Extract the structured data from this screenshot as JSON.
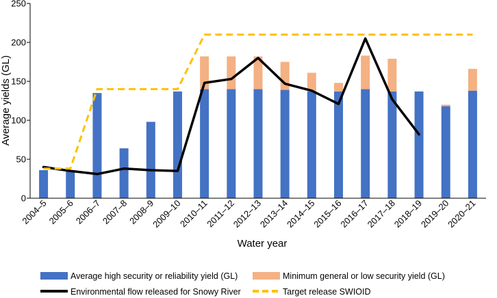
{
  "chart_data": {
    "type": "bar",
    "title": "",
    "xlabel": "Water year",
    "ylabel": "Average yields (GL)",
    "ylim": [
      0,
      250
    ],
    "yticks": [
      0,
      50,
      100,
      150,
      200,
      250
    ],
    "grid": false,
    "legend_position": "bottom",
    "categories": [
      "2004–5",
      "2005–6",
      "2006–7",
      "2007–8",
      "2008–9",
      "2009–10",
      "2010–11",
      "2011–12",
      "2012–13",
      "2013–14",
      "2014–15",
      "2015–16",
      "2016–17",
      "2017–18",
      "2018–19",
      "2019–20",
      "2020–21"
    ],
    "series": [
      {
        "name": "Average high security or reliability yield (GL)",
        "kind": "stacked-bar",
        "color": "#4472c4",
        "values": [
          36,
          36,
          135,
          64,
          98,
          137,
          140,
          140,
          140,
          139,
          137,
          137,
          140,
          137,
          137,
          118,
          138
        ]
      },
      {
        "name": "Minimum general or low security yield (GL)",
        "kind": "stacked-bar",
        "color": "#f4b183",
        "values": [
          0,
          0,
          0,
          0,
          0,
          0,
          42,
          42,
          42,
          36,
          24,
          11,
          43,
          42,
          0,
          2,
          28
        ]
      },
      {
        "name": "Environmental flow released for Snowy River",
        "kind": "line",
        "color": "#000000",
        "values": [
          40,
          35,
          31,
          38,
          36,
          35,
          148,
          153,
          180,
          147,
          138,
          121,
          205,
          127,
          82,
          null,
          null
        ]
      },
      {
        "name": "Target release SWIOID",
        "kind": "dashed-line",
        "color": "#ffc000",
        "values": [
          38,
          38,
          140,
          140,
          140,
          140,
          210,
          210,
          210,
          210,
          210,
          210,
          210,
          210,
          210,
          210,
          210
        ]
      }
    ]
  }
}
